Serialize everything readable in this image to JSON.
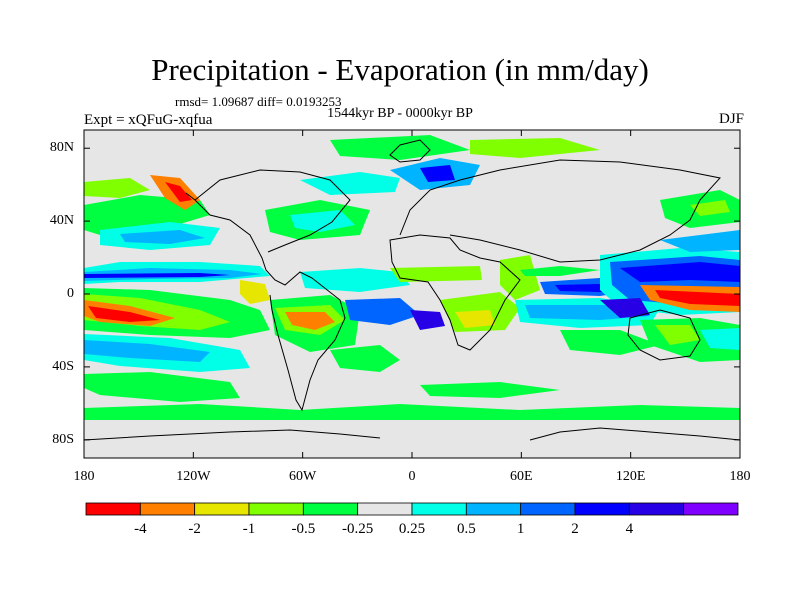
{
  "title": "Precipitation - Evaporation (in mm/day)",
  "stats": "rmsd= 1.09687 diff= 0.0193253",
  "period": "1544kyr BP - 0000kyr BP",
  "experiment": "Expt = xQFuG-xqfua",
  "season": "DJF",
  "lat_labels": [
    "80N",
    "40N",
    "0",
    "40S",
    "80S"
  ],
  "lon_labels": [
    "180",
    "120W",
    "60W",
    "0",
    "60E",
    "120E",
    "180"
  ],
  "map": {
    "background_color": "#e6e6e6",
    "coastline_color": "#000000",
    "lon_range": [
      -180,
      180
    ],
    "lat_range": [
      -90,
      90
    ]
  },
  "colorbar": {
    "colors": [
      "#ff0000",
      "#ff8000",
      "#e6e600",
      "#80ff00",
      "#00ff40",
      "#e6e6e6",
      "#00ffe6",
      "#00b4ff",
      "#0064ff",
      "#0000ff",
      "#2800e6",
      "#8000ff"
    ],
    "labels": [
      "-4",
      "-2",
      "-1",
      "-0.5",
      "-0.25",
      "0.25",
      "0.5",
      "1",
      "2",
      "4"
    ]
  }
}
